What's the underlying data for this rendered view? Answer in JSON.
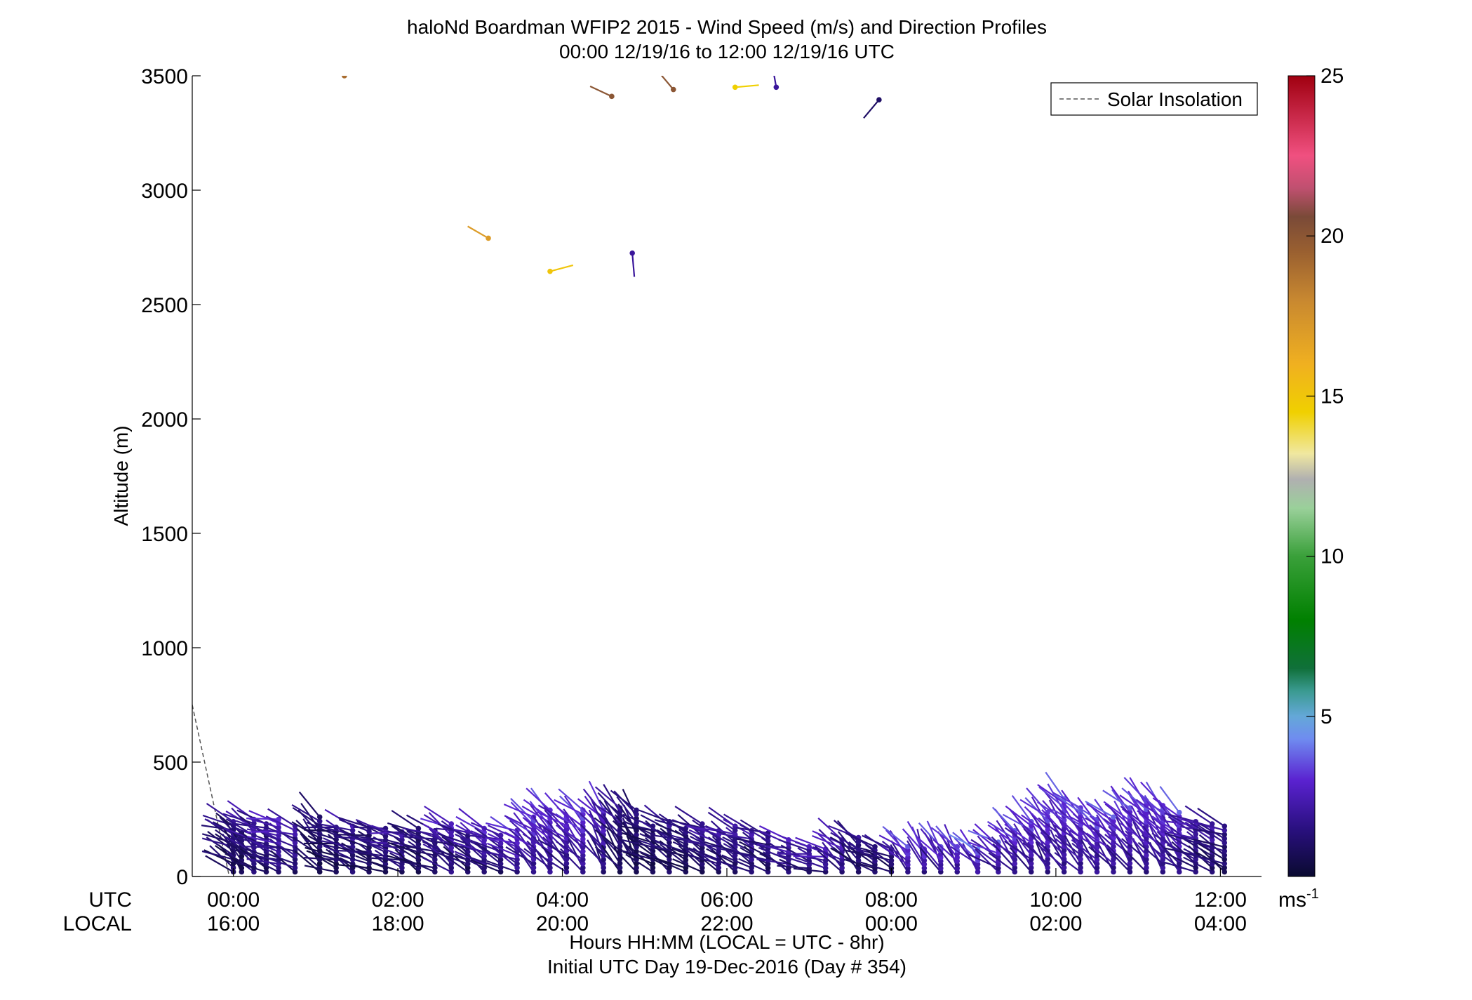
{
  "chart_data": {
    "type": "wind-profile",
    "title": "haloNd Boardman WFIP2 2015 - Wind Speed (m/s) and Direction Profiles",
    "subtitle": "00:00 12/19/16 to 12:00 12/19/16  UTC",
    "ylabel": "Altitude (m)",
    "xlabel_line1": "Hours HH:MM  (LOCAL = UTC - 8hr)",
    "xlabel_line2": "Initial UTC Day 19-Dec-2016 (Day # 354)",
    "row_label_utc": "UTC",
    "row_label_local": "LOCAL",
    "xlim_hours": [
      -0.5,
      12.5
    ],
    "ylim": [
      0,
      3500
    ],
    "yticks": [
      0,
      500,
      1000,
      1500,
      2000,
      2500,
      3000,
      3500
    ],
    "ytick_labels": [
      "0",
      "500",
      "1000",
      "1500",
      "2000",
      "2500",
      "3000",
      "3500"
    ],
    "xticks": [
      {
        "h": 0,
        "utc": "00:00",
        "local": "16:00"
      },
      {
        "h": 2,
        "utc": "02:00",
        "local": "18:00"
      },
      {
        "h": 4,
        "utc": "04:00",
        "local": "20:00"
      },
      {
        "h": 6,
        "utc": "06:00",
        "local": "22:00"
      },
      {
        "h": 8,
        "utc": "08:00",
        "local": "00:00"
      },
      {
        "h": 10,
        "utc": "10:00",
        "local": "02:00"
      },
      {
        "h": 12,
        "utc": "12:00",
        "local": "04:00"
      }
    ],
    "legend": {
      "label": "Solar Insolation",
      "placement": "top-right"
    },
    "solar_insolation": [
      [
        -0.5,
        750
      ],
      [
        -0.05,
        0
      ]
    ],
    "colorbar": {
      "range": [
        0,
        25
      ],
      "ticks": [
        5,
        10,
        15,
        20,
        25
      ],
      "tick_labels": [
        "5",
        "10",
        "15",
        "20",
        "25"
      ],
      "unit_base": "ms",
      "unit_exp": "-1",
      "stops": [
        [
          0,
          "#0a0a30"
        ],
        [
          1.5,
          "#2a1080"
        ],
        [
          3,
          "#5a22d0"
        ],
        [
          4.3,
          "#6f8cf0"
        ],
        [
          5,
          "#64a8d8"
        ],
        [
          5.8,
          "#3a9a90"
        ],
        [
          6.5,
          "#10703a"
        ],
        [
          8,
          "#008000"
        ],
        [
          10,
          "#3aa03a"
        ],
        [
          11.5,
          "#9ad09a"
        ],
        [
          12.4,
          "#b0b0b0"
        ],
        [
          13.2,
          "#f0e8a0"
        ],
        [
          14.5,
          "#f0d000"
        ],
        [
          16,
          "#f0b020"
        ],
        [
          18,
          "#c88830"
        ],
        [
          19.5,
          "#9a6030"
        ],
        [
          20.6,
          "#7a4a38"
        ],
        [
          21.5,
          "#c05070"
        ],
        [
          22.5,
          "#f05080"
        ],
        [
          25,
          "#a00010"
        ]
      ]
    },
    "profiles": [
      {
        "h": 0.0,
        "top": 240,
        "dir": 300,
        "spd": 1.5
      },
      {
        "h": 0.1,
        "top": 190,
        "dir": 320,
        "spd": 1.0
      },
      {
        "h": 0.25,
        "top": 250,
        "dir": 310,
        "spd": 2.0
      },
      {
        "h": 0.4,
        "top": 230,
        "dir": 300,
        "spd": 1.5
      },
      {
        "h": 0.55,
        "top": 250,
        "dir": 290,
        "spd": 2.5
      },
      {
        "h": 0.75,
        "top": 220,
        "dir": 300,
        "spd": 2.0
      },
      {
        "h": 1.05,
        "top": 260,
        "dir": 320,
        "spd": 1.2
      },
      {
        "h": 1.25,
        "top": 215,
        "dir": 290,
        "spd": 1.0
      },
      {
        "h": 1.45,
        "top": 220,
        "dir": 300,
        "spd": 1.8
      },
      {
        "h": 1.65,
        "top": 215,
        "dir": 290,
        "spd": 1.2
      },
      {
        "h": 1.85,
        "top": 210,
        "dir": 295,
        "spd": 1.5
      },
      {
        "h": 2.05,
        "top": 195,
        "dir": 290,
        "spd": 2.0
      },
      {
        "h": 2.25,
        "top": 210,
        "dir": 300,
        "spd": 1.2
      },
      {
        "h": 2.45,
        "top": 200,
        "dir": 295,
        "spd": 1.5
      },
      {
        "h": 2.65,
        "top": 230,
        "dir": 310,
        "spd": 2.5
      },
      {
        "h": 2.85,
        "top": 195,
        "dir": 300,
        "spd": 1.5
      },
      {
        "h": 3.05,
        "top": 210,
        "dir": 305,
        "spd": 2.5
      },
      {
        "h": 3.25,
        "top": 180,
        "dir": 300,
        "spd": 2.0
      },
      {
        "h": 3.45,
        "top": 200,
        "dir": 300,
        "spd": 2.8
      },
      {
        "h": 3.65,
        "top": 260,
        "dir": 315,
        "spd": 3.0
      },
      {
        "h": 3.85,
        "top": 290,
        "dir": 320,
        "spd": 3.0
      },
      {
        "h": 4.05,
        "top": 260,
        "dir": 315,
        "spd": 2.5
      },
      {
        "h": 4.25,
        "top": 290,
        "dir": 320,
        "spd": 3.0
      },
      {
        "h": 4.5,
        "top": 290,
        "dir": 330,
        "spd": 2.5
      },
      {
        "h": 4.7,
        "top": 300,
        "dir": 325,
        "spd": 1.5
      },
      {
        "h": 4.9,
        "top": 290,
        "dir": 330,
        "spd": 1.2
      },
      {
        "h": 5.1,
        "top": 220,
        "dir": 300,
        "spd": 1.0
      },
      {
        "h": 5.3,
        "top": 240,
        "dir": 305,
        "spd": 1.5
      },
      {
        "h": 5.5,
        "top": 210,
        "dir": 300,
        "spd": 1.2
      },
      {
        "h": 5.7,
        "top": 230,
        "dir": 305,
        "spd": 1.5
      },
      {
        "h": 5.9,
        "top": 200,
        "dir": 300,
        "spd": 2.0
      },
      {
        "h": 6.1,
        "top": 220,
        "dir": 305,
        "spd": 1.8
      },
      {
        "h": 6.3,
        "top": 200,
        "dir": 300,
        "spd": 2.0
      },
      {
        "h": 6.5,
        "top": 190,
        "dir": 300,
        "spd": 1.5
      },
      {
        "h": 6.75,
        "top": 160,
        "dir": 295,
        "spd": 2.2
      },
      {
        "h": 7.0,
        "top": 130,
        "dir": 290,
        "spd": 2.0
      },
      {
        "h": 7.2,
        "top": 120,
        "dir": 290,
        "spd": 2.5
      },
      {
        "h": 7.4,
        "top": 160,
        "dir": 310,
        "spd": 2.5
      },
      {
        "h": 7.6,
        "top": 170,
        "dir": 315,
        "spd": 1.5
      },
      {
        "h": 7.8,
        "top": 130,
        "dir": 300,
        "spd": 1.5
      },
      {
        "h": 8.0,
        "top": 120,
        "dir": 300,
        "spd": 1.5
      },
      {
        "h": 8.2,
        "top": 130,
        "dir": 320,
        "spd": 3.0
      },
      {
        "h": 8.4,
        "top": 120,
        "dir": 340,
        "spd": 3.0
      },
      {
        "h": 8.6,
        "top": 130,
        "dir": 330,
        "spd": 3.0
      },
      {
        "h": 8.8,
        "top": 130,
        "dir": 330,
        "spd": 3.0
      },
      {
        "h": 9.05,
        "top": 120,
        "dir": 320,
        "spd": 3.5
      },
      {
        "h": 9.3,
        "top": 150,
        "dir": 310,
        "spd": 3.0
      },
      {
        "h": 9.5,
        "top": 200,
        "dir": 320,
        "spd": 3.0
      },
      {
        "h": 9.7,
        "top": 240,
        "dir": 320,
        "spd": 3.0
      },
      {
        "h": 9.9,
        "top": 280,
        "dir": 325,
        "spd": 3.0
      },
      {
        "h": 10.1,
        "top": 340,
        "dir": 325,
        "spd": 3.0
      },
      {
        "h": 10.3,
        "top": 300,
        "dir": 320,
        "spd": 3.0
      },
      {
        "h": 10.5,
        "top": 250,
        "dir": 320,
        "spd": 3.0
      },
      {
        "h": 10.7,
        "top": 260,
        "dir": 320,
        "spd": 3.0
      },
      {
        "h": 10.9,
        "top": 300,
        "dir": 325,
        "spd": 3.0
      },
      {
        "h": 11.1,
        "top": 330,
        "dir": 325,
        "spd": 3.0
      },
      {
        "h": 11.3,
        "top": 310,
        "dir": 325,
        "spd": 3.0
      },
      {
        "h": 11.5,
        "top": 280,
        "dir": 320,
        "spd": 3.0
      },
      {
        "h": 11.7,
        "top": 240,
        "dir": 300,
        "spd": 2.0
      },
      {
        "h": 11.9,
        "top": 230,
        "dir": 300,
        "spd": 2.0
      },
      {
        "h": 12.05,
        "top": 220,
        "dir": 300,
        "spd": 1.5
      }
    ],
    "upper_points": [
      {
        "h": 1.35,
        "alt": 3500,
        "dir": 300,
        "spd": 19
      },
      {
        "h": 3.1,
        "alt": 2790,
        "dir": 300,
        "spd": 17
      },
      {
        "h": 3.85,
        "alt": 2645,
        "dir": 75,
        "spd": 15
      },
      {
        "h": 4.6,
        "alt": 3410,
        "dir": 295,
        "spd": 20
      },
      {
        "h": 4.85,
        "alt": 2725,
        "dir": 175,
        "spd": 2
      },
      {
        "h": 5.35,
        "alt": 3440,
        "dir": 320,
        "spd": 20
      },
      {
        "h": 6.1,
        "alt": 3450,
        "dir": 85,
        "spd": 14.5
      },
      {
        "h": 6.6,
        "alt": 3450,
        "dir": 350,
        "spd": 2
      },
      {
        "h": 7.85,
        "alt": 3395,
        "dir": 220,
        "spd": 1
      }
    ]
  }
}
